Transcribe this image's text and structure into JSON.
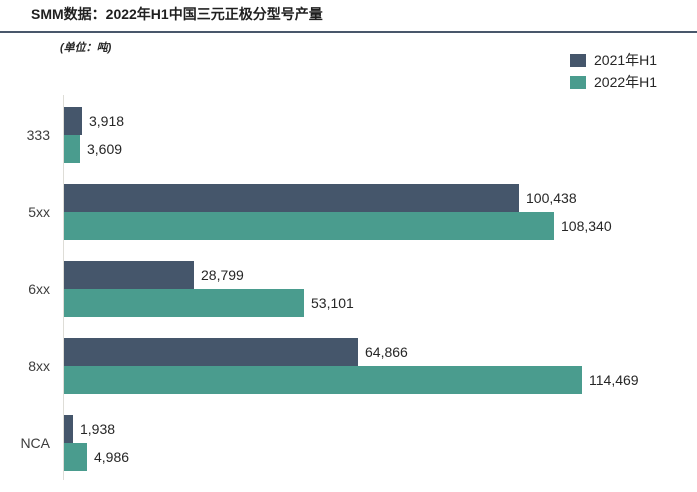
{
  "header": {
    "title": "SMM数据：2022年H1中国三元正极分型号产量",
    "unit_label": "(单位：吨)"
  },
  "colors": {
    "series_2021": "#45566b",
    "series_2022": "#4a9c8e",
    "title_divider": "#49576b",
    "axis_line": "#deddd7",
    "title_text": "#1f1f1f",
    "value_text": "#262626",
    "category_text": "#3c3c3c",
    "background": "#ffffff"
  },
  "chart_data": {
    "type": "bar",
    "orientation": "horizontal",
    "title": "SMM数据：2022年H1中国三元正极分型号产量",
    "unit": "(单位：吨)",
    "categories": [
      "333",
      "5xx",
      "6xx",
      "8xx",
      "NCA"
    ],
    "series": [
      {
        "name": "2021年H1",
        "color": "#45566b",
        "values": [
          3918,
          100438,
          28799,
          64866,
          1938
        ]
      },
      {
        "name": "2022年H1",
        "color": "#4a9c8e",
        "values": [
          3609,
          108340,
          53101,
          114469,
          4986
        ]
      }
    ],
    "value_labels": [
      [
        "3,918",
        "100,438",
        "28,799",
        "64,866",
        "1,938"
      ],
      [
        "3,609",
        "108,340",
        "53,101",
        "114,469",
        "4,986"
      ]
    ],
    "xlim": [
      0,
      127000
    ],
    "grid": false,
    "legend_position": "top-right",
    "value_labels_shown": true
  }
}
